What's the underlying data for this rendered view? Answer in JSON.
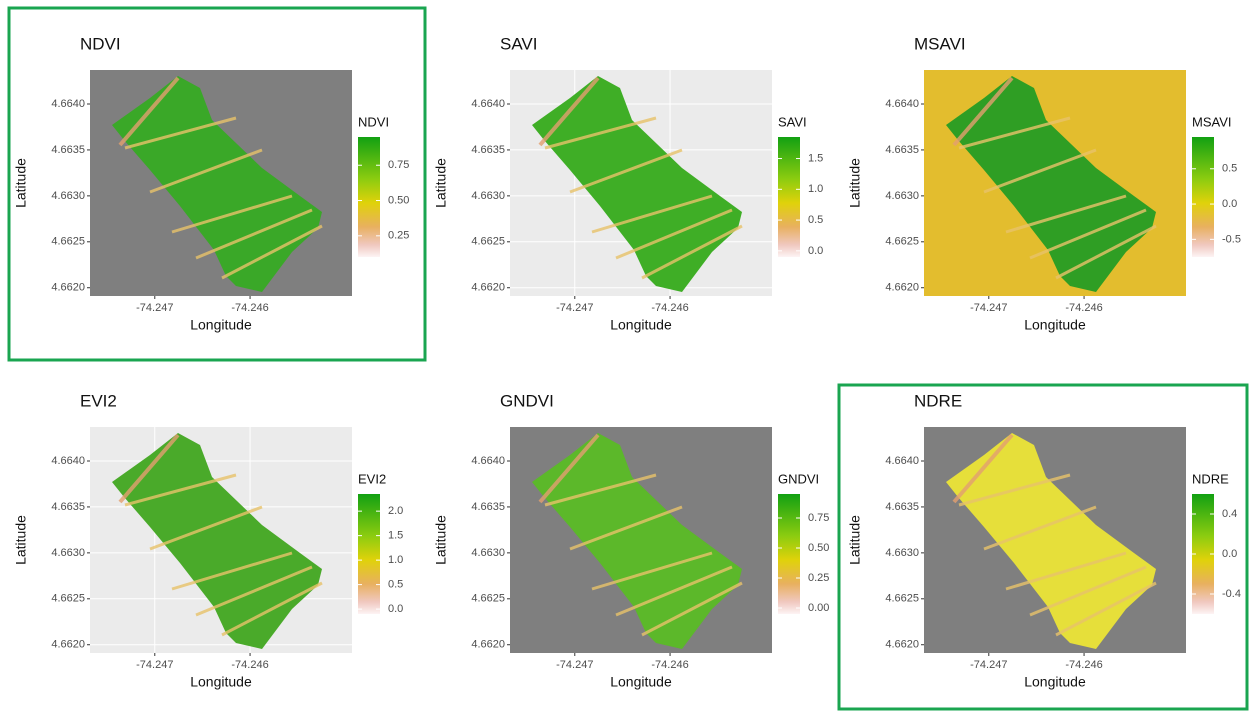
{
  "panels": [
    {
      "title": "NDVI",
      "xlabel": "Longitude",
      "ylabel": "Latitude",
      "background": "#7f7f7f",
      "field_color": "#3aa828",
      "highlighted": true,
      "xlim": [
        -74.24768,
        -74.24493
      ],
      "xticks": [
        -74.247,
        -74.246
      ],
      "ylim": [
        4.66191,
        4.66437
      ],
      "yticks": [
        {
          "value": 4.662,
          "label": "4.6620"
        },
        {
          "value": 4.6625,
          "label": "4.6625"
        },
        {
          "value": 4.663,
          "label": "4.6630"
        },
        {
          "value": 4.6635,
          "label": "4.6635"
        },
        {
          "value": 4.664,
          "label": "4.6640"
        }
      ],
      "legend": {
        "title": "NDVI",
        "lim": [
          0.1,
          0.95
        ],
        "ticks": [
          0.25,
          {
            "value": 0.5,
            "label": "0.50"
          },
          0.75
        ]
      }
    },
    {
      "title": "SAVI",
      "xlabel": "Longitude",
      "ylabel": "Latitude",
      "background": "#ebebeb",
      "field_color": "#3fae26",
      "highlighted": false,
      "xlim": [
        -74.24768,
        -74.24493
      ],
      "xticks": [
        -74.247,
        -74.246
      ],
      "ylim": [
        4.66191,
        4.66437
      ],
      "yticks": [
        {
          "value": 4.662,
          "label": "4.6620"
        },
        {
          "value": 4.6625,
          "label": "4.6625"
        },
        {
          "value": 4.663,
          "label": "4.6630"
        },
        {
          "value": 4.6635,
          "label": "4.6635"
        },
        {
          "value": 4.664,
          "label": "4.6640"
        }
      ],
      "legend": {
        "title": "SAVI",
        "lim": [
          -0.1,
          1.85
        ],
        "ticks": [
          {
            "value": 0,
            "label": "0.0"
          },
          0.5,
          {
            "value": 1,
            "label": "1.0"
          },
          1.5
        ]
      }
    },
    {
      "title": "MSAVI",
      "xlabel": "Longitude",
      "ylabel": "Latitude",
      "background": "#e3bd2e",
      "field_color": "#2f9e24",
      "highlighted": false,
      "xlim": [
        -74.24768,
        -74.24493
      ],
      "xticks": [
        -74.247,
        -74.246
      ],
      "ylim": [
        4.66191,
        4.66437
      ],
      "yticks": [
        {
          "value": 4.662,
          "label": "4.6620"
        },
        {
          "value": 4.6625,
          "label": "4.6625"
        },
        {
          "value": 4.663,
          "label": "4.6630"
        },
        {
          "value": 4.6635,
          "label": "4.6635"
        },
        {
          "value": 4.664,
          "label": "4.6640"
        }
      ],
      "legend": {
        "title": "MSAVI",
        "lim": [
          -0.75,
          0.95
        ],
        "ticks": [
          -0.5,
          {
            "value": 0,
            "label": "0.0"
          },
          0.5
        ]
      }
    },
    {
      "title": "EVI2",
      "xlabel": "Longitude",
      "ylabel": "Latitude",
      "background": "#ebebeb",
      "field_color": "#4aaa2a",
      "highlighted": false,
      "xlim": [
        -74.24768,
        -74.24493
      ],
      "xticks": [
        -74.247,
        -74.246
      ],
      "ylim": [
        4.66191,
        4.66437
      ],
      "yticks": [
        {
          "value": 4.662,
          "label": "4.6620"
        },
        {
          "value": 4.6625,
          "label": "4.6625"
        },
        {
          "value": 4.663,
          "label": "4.6630"
        },
        {
          "value": 4.6635,
          "label": "4.6635"
        },
        {
          "value": 4.664,
          "label": "4.6640"
        }
      ],
      "legend": {
        "title": "EVI2",
        "lim": [
          -0.1,
          2.35
        ],
        "ticks": [
          {
            "value": 0,
            "label": "0.0"
          },
          0.5,
          {
            "value": 1,
            "label": "1.0"
          },
          1.5,
          {
            "value": 2,
            "label": "2.0"
          }
        ]
      }
    },
    {
      "title": "GNDVI",
      "xlabel": "Longitude",
      "ylabel": "Latitude",
      "background": "#7f7f7f",
      "field_color": "#5cb82a",
      "highlighted": false,
      "xlim": [
        -74.24768,
        -74.24493
      ],
      "xticks": [
        -74.247,
        -74.246
      ],
      "ylim": [
        4.66191,
        4.66437
      ],
      "yticks": [
        {
          "value": 4.662,
          "label": "4.6620"
        },
        {
          "value": 4.6625,
          "label": "4.6625"
        },
        {
          "value": 4.663,
          "label": "4.6630"
        },
        {
          "value": 4.6635,
          "label": "4.6635"
        },
        {
          "value": 4.664,
          "label": "4.6640"
        }
      ],
      "legend": {
        "title": "GNDVI",
        "lim": [
          -0.05,
          0.95
        ],
        "ticks": [
          {
            "value": 0,
            "label": "0.00"
          },
          0.25,
          {
            "value": 0.5,
            "label": "0.50"
          },
          0.75
        ]
      }
    },
    {
      "title": "NDRE",
      "xlabel": "Longitude",
      "ylabel": "Latitude",
      "background": "#7f7f7f",
      "field_color": "#e6df3a",
      "highlighted": true,
      "xlim": [
        -74.24768,
        -74.24493
      ],
      "xticks": [
        -74.247,
        -74.246
      ],
      "ylim": [
        4.66191,
        4.66437
      ],
      "yticks": [
        {
          "value": 4.662,
          "label": "4.6620"
        },
        {
          "value": 4.6625,
          "label": "4.6625"
        },
        {
          "value": 4.663,
          "label": "4.6630"
        },
        {
          "value": 4.6635,
          "label": "4.6635"
        },
        {
          "value": 4.664,
          "label": "4.6640"
        }
      ],
      "legend": {
        "title": "NDRE",
        "lim": [
          -0.6,
          0.6
        ],
        "ticks": [
          -0.4,
          {
            "value": 0,
            "label": "0.0"
          },
          0.4
        ]
      }
    }
  ]
}
